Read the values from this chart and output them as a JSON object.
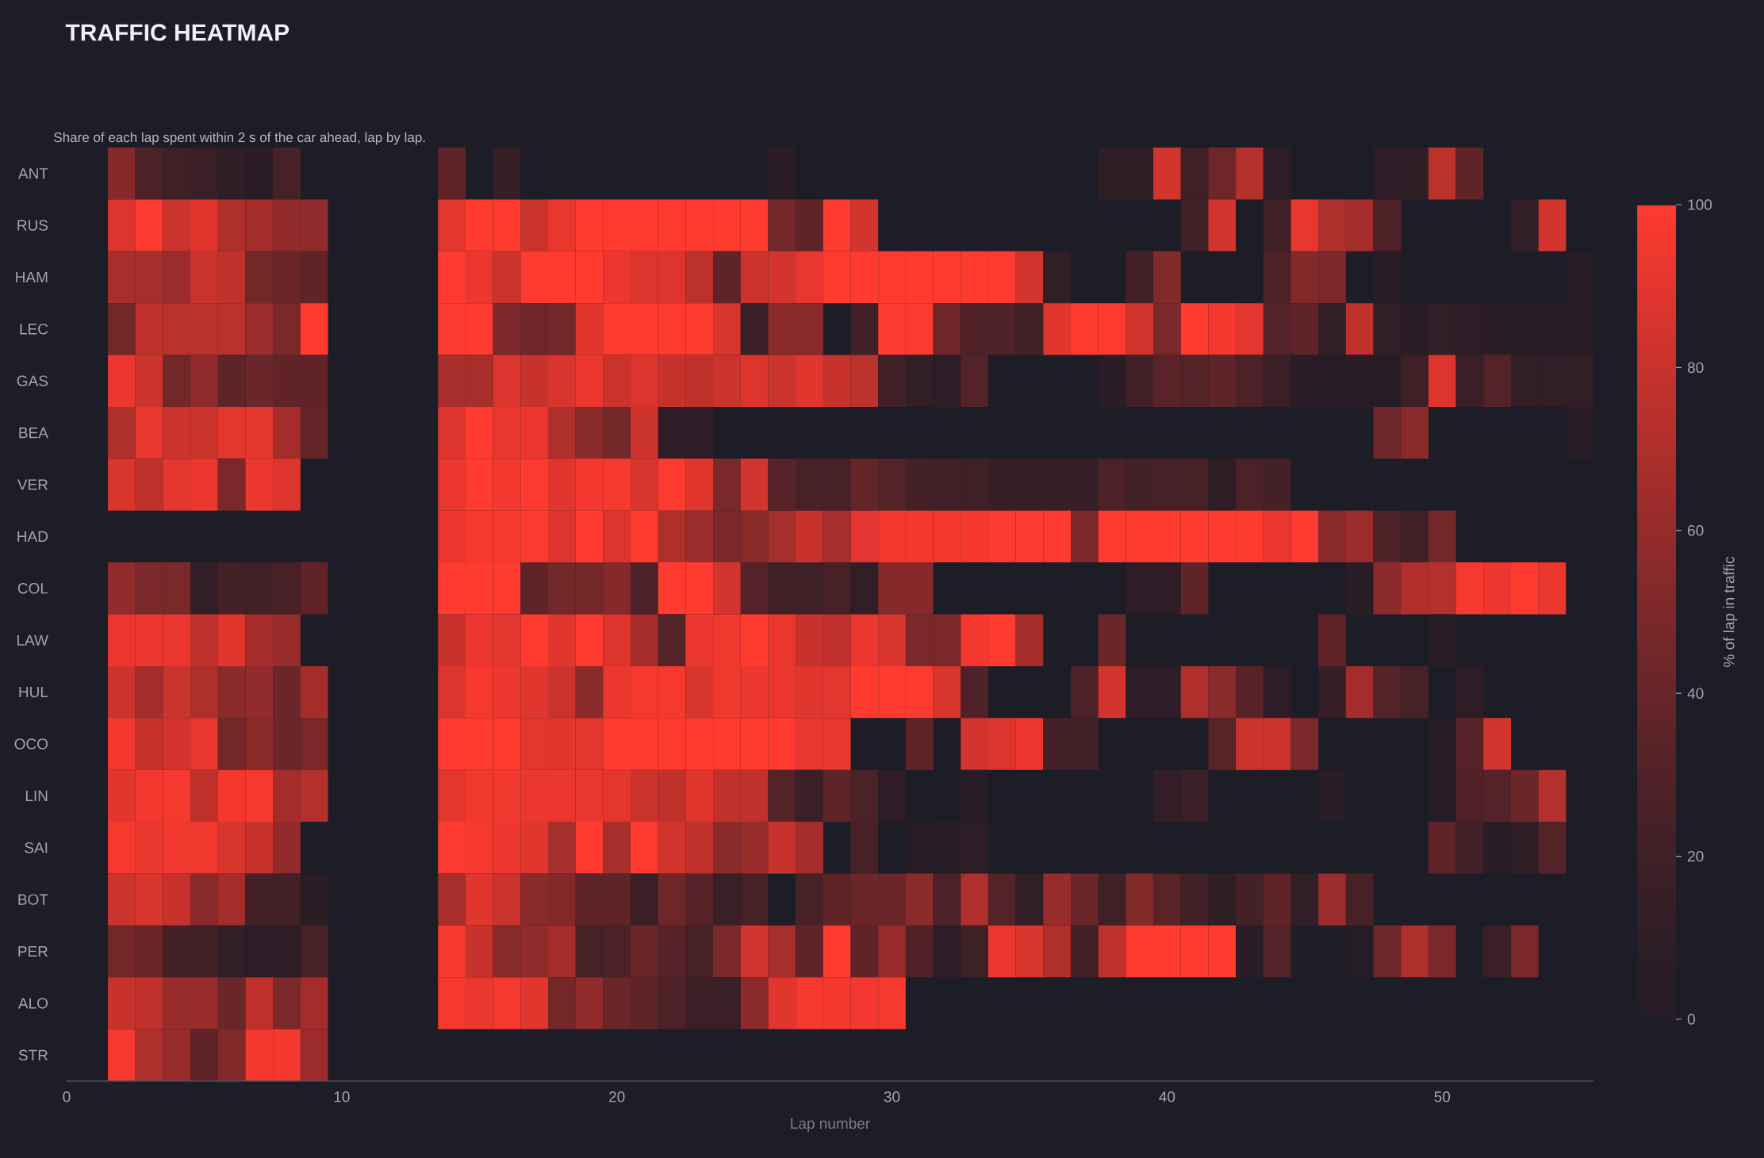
{
  "chart_data": {
    "type": "heatmap",
    "title": "TRAFFIC HEATMAP",
    "subtitle": "Share of each lap spent within 2 s of the car ahead, lap by lap.",
    "xlabel": "Lap number",
    "clabel": "% of lap in traffic",
    "x": [
      2,
      3,
      4,
      5,
      6,
      7,
      8,
      9,
      10,
      11,
      12,
      13,
      14,
      15,
      16,
      17,
      18,
      19,
      20,
      21,
      22,
      23,
      24,
      25,
      26,
      27,
      28,
      29,
      30,
      31,
      32,
      33,
      34,
      35,
      36,
      37,
      38,
      39,
      40,
      41,
      42,
      43,
      44,
      45,
      46,
      47,
      48,
      49,
      50,
      51,
      52,
      53,
      54,
      55
    ],
    "xlim": [
      0,
      55.5
    ],
    "xticks": [
      0,
      10,
      20,
      30,
      40,
      50
    ],
    "y_categories": [
      "ANT",
      "RUS",
      "HAM",
      "LEC",
      "GAS",
      "BEA",
      "VER",
      "HAD",
      "COL",
      "LAW",
      "HUL",
      "OCO",
      "LIN",
      "SAI",
      "BOT",
      "PER",
      "ALO",
      "STR"
    ],
    "cells": [
      [
        54,
        27,
        20,
        17,
        10,
        7,
        24,
        null,
        null,
        null,
        null,
        null,
        37,
        null,
        15,
        null,
        null,
        null,
        null,
        null,
        null,
        null,
        null,
        null,
        7,
        null,
        null,
        null,
        null,
        null,
        null,
        null,
        null,
        null,
        null,
        null,
        10,
        10,
        84,
        20,
        44,
        72,
        9,
        null,
        null,
        null,
        9,
        10,
        75,
        37,
        null,
        null,
        null,
        null
      ],
      [
        88,
        99,
        81,
        89,
        70,
        66,
        59,
        59,
        null,
        null,
        null,
        null,
        90,
        100,
        100,
        82,
        92,
        100,
        100,
        100,
        100,
        100,
        100,
        100,
        46,
        37,
        100,
        84,
        null,
        null,
        null,
        null,
        null,
        null,
        null,
        null,
        null,
        null,
        null,
        20,
        84,
        null,
        20,
        92,
        70,
        66,
        28,
        null,
        null,
        null,
        null,
        12,
        84,
        null
      ],
      [
        67,
        67,
        63,
        81,
        77,
        45,
        42,
        37,
        null,
        null,
        null,
        null,
        100,
        93,
        81,
        100,
        100,
        100,
        93,
        88,
        88,
        75,
        36,
        82,
        84,
        92,
        100,
        100,
        100,
        100,
        100,
        100,
        100,
        84,
        12,
        null,
        null,
        21,
        52,
        null,
        null,
        null,
        28,
        52,
        49,
        null,
        5,
        null,
        null,
        null,
        null,
        null,
        null,
        5
      ],
      [
        45,
        77,
        75,
        75,
        75,
        63,
        49,
        100,
        null,
        null,
        null,
        null,
        99,
        100,
        49,
        44,
        46,
        89,
        100,
        100,
        100,
        100,
        86,
        17,
        56,
        55,
        null,
        21,
        99,
        99,
        44,
        28,
        28,
        21,
        89,
        100,
        100,
        84,
        49,
        100,
        96,
        90,
        31,
        37,
        12,
        77,
        12,
        7,
        12,
        9,
        7,
        7,
        7,
        7
      ],
      [
        93,
        81,
        45,
        59,
        36,
        42,
        37,
        37,
        null,
        null,
        null,
        null,
        67,
        67,
        88,
        80,
        86,
        93,
        81,
        88,
        80,
        77,
        81,
        88,
        81,
        89,
        80,
        75,
        21,
        12,
        9,
        31,
        null,
        null,
        null,
        null,
        7,
        21,
        34,
        31,
        36,
        27,
        17,
        5,
        5,
        5,
        5,
        20,
        88,
        17,
        31,
        12,
        12,
        12
      ],
      [
        70,
        92,
        81,
        81,
        90,
        90,
        66,
        39,
        null,
        null,
        null,
        null,
        88,
        100,
        92,
        93,
        70,
        56,
        45,
        82,
        9,
        9,
        null,
        null,
        null,
        null,
        null,
        null,
        null,
        null,
        null,
        null,
        null,
        null,
        null,
        null,
        null,
        null,
        null,
        null,
        null,
        null,
        null,
        null,
        null,
        null,
        43,
        56,
        null,
        null,
        null,
        null,
        null,
        5
      ],
      [
        86,
        77,
        90,
        93,
        49,
        93,
        88,
        null,
        null,
        null,
        null,
        null,
        93,
        100,
        96,
        99,
        89,
        96,
        97,
        86,
        99,
        89,
        49,
        84,
        33,
        25,
        25,
        39,
        31,
        23,
        21,
        20,
        15,
        15,
        15,
        15,
        27,
        23,
        25,
        25,
        10,
        27,
        23,
        null,
        null,
        null,
        null,
        null,
        null,
        null,
        null,
        null,
        null,
        null
      ],
      [
        null,
        null,
        null,
        null,
        null,
        null,
        null,
        null,
        null,
        null,
        null,
        null,
        93,
        97,
        97,
        99,
        88,
        100,
        88,
        100,
        71,
        63,
        49,
        56,
        67,
        80,
        67,
        90,
        96,
        96,
        96,
        96,
        99,
        99,
        99,
        49,
        100,
        100,
        100,
        100,
        100,
        100,
        93,
        100,
        56,
        63,
        28,
        20,
        46,
        null,
        null,
        null,
        null,
        null
      ],
      [
        59,
        49,
        49,
        12,
        23,
        21,
        25,
        37,
        null,
        null,
        null,
        null,
        100,
        100,
        100,
        37,
        45,
        46,
        54,
        28,
        100,
        100,
        84,
        33,
        20,
        20,
        25,
        12,
        54,
        54,
        null,
        null,
        null,
        null,
        null,
        null,
        null,
        9,
        9,
        36,
        null,
        null,
        null,
        null,
        null,
        5,
        56,
        71,
        72,
        97,
        93,
        100,
        93,
        null
      ],
      [
        93,
        93,
        93,
        77,
        89,
        66,
        61,
        null,
        null,
        null,
        null,
        null,
        80,
        93,
        90,
        100,
        89,
        100,
        88,
        66,
        31,
        93,
        95,
        100,
        92,
        80,
        77,
        93,
        86,
        49,
        49,
        96,
        100,
        66,
        null,
        null,
        42,
        null,
        null,
        null,
        null,
        null,
        null,
        null,
        37,
        null,
        null,
        null,
        5,
        null,
        null,
        null,
        null,
        null
      ],
      [
        81,
        66,
        81,
        70,
        56,
        59,
        42,
        66,
        null,
        null,
        null,
        null,
        88,
        97,
        93,
        89,
        81,
        56,
        93,
        97,
        97,
        86,
        95,
        93,
        92,
        89,
        90,
        100,
        100,
        100,
        86,
        28,
        null,
        null,
        null,
        28,
        84,
        9,
        9,
        71,
        56,
        33,
        9,
        null,
        15,
        66,
        31,
        25,
        null,
        9,
        null,
        null,
        null,
        null
      ],
      [
        96,
        80,
        84,
        92,
        46,
        56,
        42,
        49,
        null,
        null,
        null,
        null,
        100,
        100,
        100,
        90,
        89,
        90,
        100,
        100,
        100,
        100,
        100,
        100,
        100,
        92,
        92,
        null,
        null,
        37,
        null,
        84,
        88,
        93,
        23,
        23,
        null,
        null,
        null,
        null,
        34,
        82,
        82,
        49,
        null,
        null,
        null,
        null,
        5,
        33,
        84,
        null,
        null,
        null
      ],
      [
        89,
        96,
        97,
        77,
        96,
        97,
        66,
        72,
        null,
        null,
        null,
        null,
        90,
        95,
        95,
        93,
        93,
        92,
        90,
        81,
        77,
        89,
        77,
        77,
        31,
        17,
        37,
        27,
        9,
        null,
        null,
        5,
        null,
        null,
        null,
        null,
        null,
        null,
        12,
        17,
        null,
        null,
        null,
        null,
        5,
        null,
        null,
        null,
        3,
        29,
        31,
        42,
        72,
        null
      ],
      [
        97,
        92,
        95,
        95,
        86,
        80,
        59,
        null,
        null,
        null,
        null,
        null,
        99,
        97,
        93,
        89,
        67,
        100,
        67,
        100,
        84,
        77,
        56,
        61,
        80,
        66,
        null,
        25,
        null,
        3,
        5,
        9,
        null,
        null,
        null,
        null,
        null,
        null,
        null,
        null,
        null,
        null,
        null,
        null,
        null,
        null,
        null,
        null,
        36,
        21,
        5,
        10,
        31,
        null
      ],
      [
        82,
        86,
        80,
        56,
        66,
        23,
        23,
        7,
        null,
        null,
        null,
        null,
        67,
        89,
        81,
        56,
        52,
        37,
        36,
        17,
        44,
        33,
        17,
        25,
        null,
        25,
        37,
        42,
        42,
        56,
        27,
        70,
        31,
        12,
        61,
        42,
        20,
        52,
        34,
        21,
        10,
        23,
        37,
        12,
        63,
        25,
        null,
        null,
        null,
        null,
        null,
        null,
        null,
        null
      ],
      [
        46,
        42,
        23,
        23,
        12,
        9,
        9,
        25,
        null,
        null,
        null,
        null,
        97,
        80,
        55,
        59,
        66,
        25,
        27,
        42,
        33,
        25,
        49,
        84,
        67,
        37,
        100,
        37,
        61,
        29,
        9,
        20,
        93,
        86,
        70,
        21,
        77,
        100,
        100,
        100,
        100,
        7,
        31,
        null,
        null,
        3,
        43,
        70,
        49,
        null,
        17,
        49,
        null,
        null
      ],
      [
        80,
        77,
        61,
        61,
        42,
        77,
        49,
        66,
        null,
        null,
        null,
        null,
        97,
        93,
        97,
        89,
        46,
        59,
        42,
        36,
        27,
        17,
        17,
        56,
        89,
        97,
        96,
        96,
        97,
        null,
        null,
        null,
        null,
        null,
        null,
        null,
        null,
        null,
        null,
        null,
        null,
        null,
        null,
        null,
        null,
        null,
        null,
        null,
        null,
        null,
        null,
        null,
        null,
        null
      ],
      [
        97,
        70,
        61,
        37,
        52,
        96,
        96,
        63,
        null,
        null,
        null,
        null,
        null,
        null,
        null,
        null,
        null,
        null,
        null,
        null,
        null,
        null,
        null,
        null,
        null,
        null,
        null,
        null,
        null,
        null,
        null,
        null,
        null,
        null,
        null,
        null,
        null,
        null,
        null,
        null,
        null,
        null,
        null,
        null,
        null,
        null,
        null,
        null,
        null,
        null,
        null,
        null,
        null,
        null
      ]
    ],
    "clim": [
      0,
      100
    ],
    "cticks": [
      0,
      20,
      40,
      60,
      80,
      100
    ]
  }
}
